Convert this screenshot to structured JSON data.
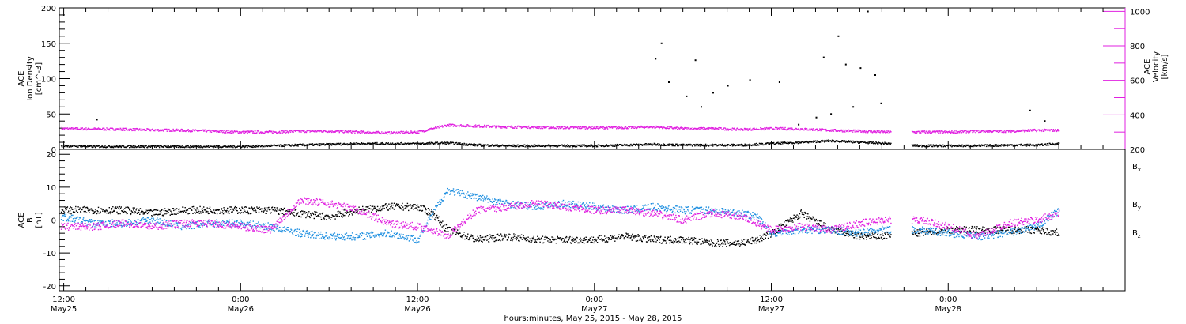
{
  "colors": {
    "black": "#000000",
    "density": "#000000",
    "velocity": "#e020e0",
    "bx": "#000000",
    "by": "#1e8fe0",
    "bz": "#e020e0"
  },
  "footer": {
    "caption": "hours:minutes, May 25, 2015 - May 28, 2015"
  },
  "chart_data": [
    {
      "type": "scatter",
      "panel": "ion-density-and-velocity",
      "x_unit": "hours since 2015-05-25 00:00 UT",
      "xlim": [
        11.7,
        84.0
      ],
      "x_ticks": [
        {
          "x": 12,
          "time": "12:00",
          "day": "May25"
        },
        {
          "x": 24,
          "time": "0:00",
          "day": "May26"
        },
        {
          "x": 36,
          "time": "12:00",
          "day": "May26"
        },
        {
          "x": 48,
          "time": "0:00",
          "day": "May27"
        },
        {
          "x": 60,
          "time": "12:00",
          "day": "May27"
        },
        {
          "x": 72,
          "time": "0:00",
          "day": "May28"
        }
      ],
      "left_axis": {
        "label_lines": [
          "ACE",
          "Ion Density",
          "[cm^-3]"
        ],
        "ylim": [
          0,
          200
        ],
        "ticks": [
          "0",
          "50",
          "100",
          "150",
          "200"
        ],
        "tick_values": [
          0,
          50,
          100,
          150,
          200
        ]
      },
      "right_axis": {
        "label_lines": [
          "ACE",
          "Velocity",
          "[km/s]"
        ],
        "ylim": [
          200,
          1020
        ],
        "ticks": [
          "200",
          "400",
          "600",
          "800",
          "1000"
        ],
        "tick_values": [
          200,
          400,
          600,
          800,
          1000
        ]
      },
      "gaps": [
        [
          68.1,
          69.5
        ]
      ],
      "series": [
        {
          "name": "Ion Density",
          "axis": "left",
          "color": "#000000",
          "x": [
            11.8,
            14,
            16,
            18,
            20,
            22,
            24,
            26,
            28,
            30,
            32,
            34,
            36,
            38,
            40,
            42,
            44,
            46,
            48,
            50,
            52,
            54,
            56,
            58,
            60,
            62,
            64,
            66,
            68,
            70,
            72,
            74,
            76,
            78,
            79.5
          ],
          "y": [
            5,
            4,
            4,
            4,
            4,
            4,
            4,
            5,
            6,
            7,
            8,
            8,
            8,
            9,
            6,
            5,
            5,
            5,
            5,
            6,
            7,
            6,
            6,
            6,
            8,
            10,
            12,
            10,
            8,
            5,
            5,
            5,
            6,
            6,
            8
          ],
          "spikes": [
            [
              14.2,
              42
            ],
            [
              52.1,
              128
            ],
            [
              52.5,
              150
            ],
            [
              53.0,
              95
            ],
            [
              54.2,
              75
            ],
            [
              54.8,
              126
            ],
            [
              55.2,
              60
            ],
            [
              56.0,
              80
            ],
            [
              57.0,
              90
            ],
            [
              58.5,
              98
            ],
            [
              60.5,
              95
            ],
            [
              61.8,
              35
            ],
            [
              63.0,
              45
            ],
            [
              63.5,
              130
            ],
            [
              64.0,
              50
            ],
            [
              64.5,
              160
            ],
            [
              65.0,
              120
            ],
            [
              65.5,
              60
            ],
            [
              66.0,
              115
            ],
            [
              66.5,
              195
            ],
            [
              67.0,
              105
            ],
            [
              67.4,
              65
            ],
            [
              77.5,
              55
            ],
            [
              78.5,
              40
            ]
          ]
        },
        {
          "name": "Velocity",
          "axis": "right",
          "color": "#e020e0",
          "x": [
            11.8,
            14,
            16,
            18,
            20,
            22,
            24,
            26,
            28,
            30,
            32,
            34,
            36,
            37,
            38,
            40,
            42,
            44,
            46,
            48,
            50,
            52,
            54,
            56,
            58,
            60,
            62,
            64,
            66,
            68,
            70,
            72,
            74,
            76,
            78,
            79.5
          ],
          "y": [
            320,
            318,
            316,
            312,
            310,
            305,
            300,
            300,
            305,
            305,
            300,
            295,
            300,
            320,
            340,
            335,
            330,
            328,
            326,
            325,
            326,
            330,
            320,
            320,
            315,
            320,
            318,
            310,
            305,
            300,
            300,
            300,
            305,
            305,
            310,
            310
          ]
        }
      ]
    },
    {
      "type": "scatter",
      "panel": "magnetic-field-components",
      "x_unit": "hours since 2015-05-25 00:00 UT",
      "xlim": [
        11.7,
        84.0
      ],
      "left_axis": {
        "label_lines": [
          "ACE",
          "B",
          "[nT]"
        ],
        "ylim": [
          -21.5,
          21.5
        ],
        "ticks": [
          "-20",
          "-10",
          "0",
          "10",
          "20"
        ],
        "tick_values": [
          -20,
          -10,
          0,
          10,
          20
        ]
      },
      "zero_line": 0,
      "gaps": [
        [
          68.1,
          69.5
        ]
      ],
      "legend": [
        {
          "name": "Bx",
          "base": "B",
          "sub": "x",
          "color": "#000000"
        },
        {
          "name": "By",
          "base": "B",
          "sub": "y",
          "color": "#1e8fe0"
        },
        {
          "name": "Bz",
          "base": "B",
          "sub": "z",
          "color": "#e020e0"
        }
      ],
      "series": [
        {
          "name": "Bx",
          "color": "#000000",
          "x": [
            11.8,
            14,
            16,
            18,
            20,
            22,
            24,
            26,
            28,
            30,
            32,
            34,
            36,
            37,
            38,
            40,
            42,
            44,
            46,
            48,
            50,
            52,
            54,
            56,
            58,
            59,
            60,
            62,
            64,
            66,
            67.5,
            70,
            72,
            74,
            76,
            78,
            79.5
          ],
          "y": [
            3,
            3,
            3,
            2,
            3,
            3,
            3,
            3,
            2,
            1,
            3,
            4,
            4,
            2,
            -3,
            -6,
            -5,
            -6,
            -6,
            -6,
            -5,
            -6,
            -6,
            -7,
            -7,
            -6,
            -4,
            2,
            -3,
            -5,
            -5,
            -4,
            -3,
            -3,
            -3,
            -3,
            -4
          ]
        },
        {
          "name": "By",
          "color": "#1e8fe0",
          "x": [
            11.8,
            13,
            14,
            16,
            18,
            20,
            22,
            24,
            26,
            28,
            30,
            32,
            34,
            35,
            36,
            37,
            38,
            40,
            42,
            44,
            46,
            48,
            50,
            52,
            54,
            56,
            58,
            59,
            60,
            62,
            64,
            66,
            67.5,
            70,
            72,
            74,
            76,
            78,
            79.5
          ],
          "y": [
            1,
            0,
            -1,
            -1,
            0,
            -2,
            -1,
            -1,
            -2,
            -4,
            -5,
            -5,
            -4,
            -5,
            -6,
            2,
            9,
            7,
            5,
            4,
            5,
            4,
            3,
            4,
            3,
            3,
            2,
            1,
            -4,
            -3,
            -3,
            -4,
            -3,
            -3,
            -4,
            -5,
            -4,
            -2,
            3
          ]
        },
        {
          "name": "Bz",
          "color": "#e020e0",
          "x": [
            11.8,
            14,
            16,
            18,
            20,
            22,
            24,
            26,
            28,
            30,
            32,
            34,
            36,
            37,
            38,
            40,
            42,
            44,
            46,
            48,
            50,
            52,
            54,
            56,
            58,
            59,
            60,
            62,
            64,
            66,
            67.5,
            70,
            72,
            74,
            76,
            78,
            79.5
          ],
          "y": [
            -2,
            -2,
            -1,
            -2,
            -1,
            -1,
            -2,
            -3,
            6,
            5,
            3,
            -1,
            -2,
            -3,
            -5,
            3,
            4,
            5,
            4,
            3,
            3,
            2,
            0,
            2,
            1,
            -1,
            -3,
            -2,
            -3,
            -1,
            0,
            0,
            -2,
            -5,
            -1,
            0,
            2
          ]
        }
      ]
    }
  ]
}
